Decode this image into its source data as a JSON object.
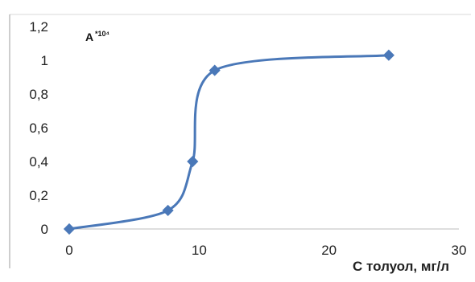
{
  "chart_data": {
    "type": "line",
    "ylabel_main": "A",
    "ylabel_suffix": "*10⁴",
    "xlabel": "C толуол, мг/л",
    "x_ticks": [
      "0",
      "10",
      "20",
      "30"
    ],
    "y_ticks": [
      "0",
      "0,2",
      "0,4",
      "0,6",
      "0,8",
      "1",
      "1,2"
    ],
    "xlim": [
      0,
      30
    ],
    "ylim": [
      0,
      1.2
    ],
    "grid": false,
    "series": [
      {
        "color": "#4a78b8",
        "x": [
          0,
          7.6,
          9.5,
          11.2,
          24.6
        ],
        "y": [
          0,
          0.11,
          0.4,
          0.94,
          1.03
        ]
      }
    ]
  }
}
